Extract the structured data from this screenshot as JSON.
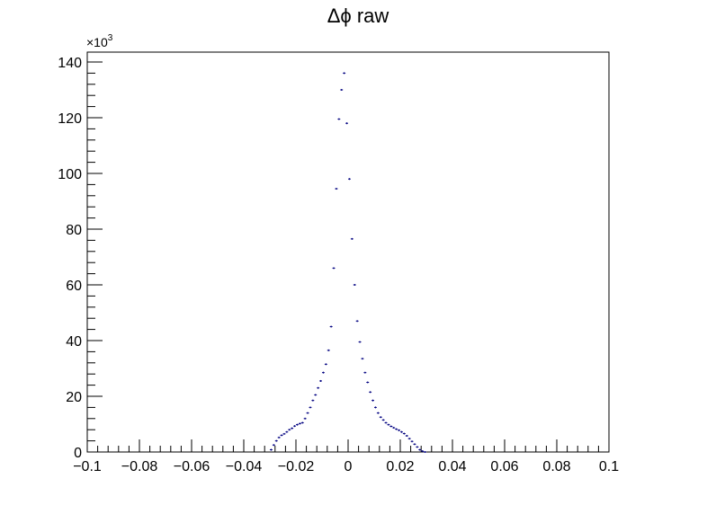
{
  "chart_data": {
    "type": "scatter",
    "title": "Δϕ raw",
    "xlabel": "",
    "ylabel": "",
    "xlim": [
      -0.1,
      0.1
    ],
    "ylim": [
      0,
      140000
    ],
    "y_exponent_label": "×10",
    "y_exponent_power": "3",
    "x_tick_labels": [
      "−0.1",
      "−0.08",
      "−0.06",
      "−0.04",
      "−0.02",
      "0",
      "0.02",
      "0.04",
      "0.06",
      "0.08",
      "0.1"
    ],
    "x_ticks": [
      -0.1,
      -0.08,
      -0.06,
      -0.04,
      -0.02,
      0,
      0.02,
      0.04,
      0.06,
      0.08,
      0.1
    ],
    "y_tick_labels": [
      "0",
      "20",
      "40",
      "60",
      "80",
      "100",
      "120",
      "140"
    ],
    "y_ticks": [
      0,
      20000,
      40000,
      60000,
      80000,
      100000,
      120000,
      140000
    ],
    "grid": false,
    "marker_color": "#000080",
    "bin_width": 0.001,
    "x": [
      -0.0295,
      -0.0285,
      -0.0275,
      -0.0265,
      -0.0255,
      -0.0245,
      -0.0235,
      -0.0225,
      -0.0215,
      -0.0205,
      -0.0195,
      -0.0185,
      -0.0175,
      -0.0165,
      -0.0155,
      -0.0145,
      -0.0135,
      -0.0125,
      -0.0115,
      -0.0105,
      -0.0095,
      -0.0085,
      -0.0075,
      -0.0065,
      -0.0055,
      -0.0045,
      -0.0035,
      -0.0025,
      -0.0015,
      -0.0005,
      0.0005,
      0.0015,
      0.0025,
      0.0035,
      0.0045,
      0.0055,
      0.0065,
      0.0075,
      0.0085,
      0.0095,
      0.0105,
      0.0115,
      0.0125,
      0.0135,
      0.0145,
      0.0155,
      0.0165,
      0.0175,
      0.0185,
      0.0195,
      0.0205,
      0.0215,
      0.0225,
      0.0235,
      0.0245,
      0.0255,
      0.0265,
      0.0275,
      0.0285,
      0.0295
    ],
    "y": [
      800,
      2500,
      4000,
      5200,
      6000,
      6500,
      7200,
      8000,
      8500,
      9300,
      9800,
      10200,
      10500,
      12000,
      14000,
      16000,
      18500,
      20500,
      23000,
      25500,
      28500,
      31500,
      36500,
      45000,
      66000,
      94500,
      119500,
      130000,
      136000,
      118000,
      98000,
      76500,
      60000,
      47000,
      39500,
      33500,
      28500,
      25000,
      21500,
      18500,
      16000,
      14000,
      12500,
      11500,
      10500,
      9800,
      9200,
      8700,
      8200,
      7800,
      7200,
      6600,
      5800,
      4800,
      3800,
      2800,
      1800,
      800,
      300,
      0
    ]
  }
}
